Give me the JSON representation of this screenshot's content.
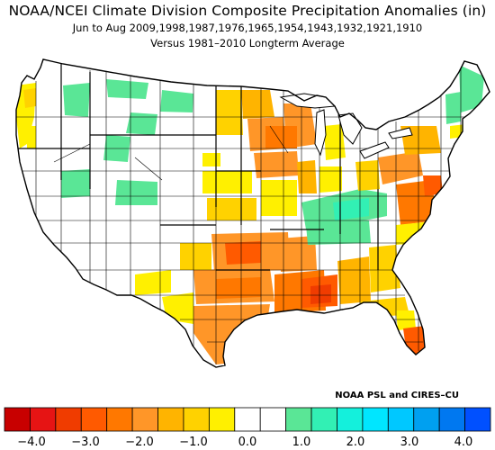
{
  "title": "NOAA/NCEI Climate Division Composite Precipitation Anomalies (in)",
  "subtitle": "Jun to Aug  2009,1998,1987,1976,1965,1954,1943,1932,1921,1910",
  "baseline": "Versus 1981–2010 Longterm Average",
  "credit": "NOAA PSL and CIRES–CU",
  "colorbar": {
    "min": -4.5,
    "max": 4.5,
    "step": 0.5,
    "tick_labels": [
      "−4.0",
      "−3.0",
      "−2.0",
      "−1.0",
      "0.0",
      "1.0",
      "2.0",
      "3.0",
      "4.0"
    ],
    "tick_values": [
      -4,
      -3,
      -2,
      -1,
      0,
      1,
      2,
      3,
      4
    ],
    "colors": [
      "#c80000",
      "#e61414",
      "#f03c00",
      "#ff5a00",
      "#ff7800",
      "#ff9628",
      "#ffb400",
      "#ffd200",
      "#fff000",
      "#ffffff",
      "#ffffff",
      "#5ae696",
      "#32f0b4",
      "#14f0dc",
      "#00e6ff",
      "#00c8ff",
      "#00a0f0",
      "#0078f0",
      "#0050ff"
    ]
  },
  "colors": {
    "outline": "#000000",
    "land": "#ffffff",
    "lake": "#ffffff"
  },
  "regions": [
    {
      "name": "Pacific Northwest coast",
      "anomaly": -1.0
    },
    {
      "name": "Montana / Northern Plains",
      "anomaly": 1.0
    },
    {
      "name": "Upper Midwest",
      "anomaly": -2.0
    },
    {
      "name": "Southern Plains",
      "anomaly": -2.5
    },
    {
      "name": "Lower Mississippi Valley",
      "anomaly": -2.5
    },
    {
      "name": "Ohio Valley",
      "anomaly": 1.0
    },
    {
      "name": "Mid-Atlantic",
      "anomaly": -2.0
    },
    {
      "name": "New England",
      "anomaly": 1.0
    },
    {
      "name": "Florida",
      "anomaly": -2.5
    },
    {
      "name": "Great Basin / Southwest",
      "anomaly": 0.0
    }
  ]
}
